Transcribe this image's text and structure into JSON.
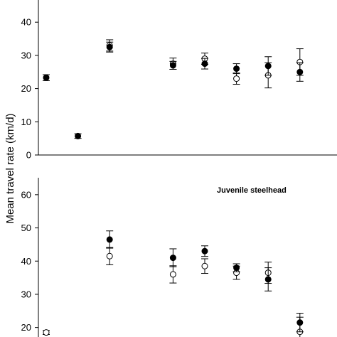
{
  "chart_data": [
    {
      "type": "scatter",
      "ylim": [
        0,
        45
      ],
      "yticks": [
        0,
        10,
        20,
        30,
        40
      ],
      "annotation": "",
      "series": [
        {
          "marker": "filled",
          "color": "#000000",
          "points": [
            {
              "x": 1,
              "y": 23.3,
              "err": 0.9
            },
            {
              "x": 2,
              "y": 5.7,
              "err": 0.7
            },
            {
              "x": 3,
              "y": 32.5,
              "err": 1.5
            },
            {
              "x": 5,
              "y": 27.0,
              "err": 1.2
            },
            {
              "x": 6,
              "y": 27.5,
              "err": 1.6
            },
            {
              "x": 7,
              "y": 26.0,
              "err": 1.5
            },
            {
              "x": 8,
              "y": 26.8,
              "err": 2.8
            },
            {
              "x": 9,
              "y": 25.0,
              "err": 2.8
            }
          ]
        },
        {
          "marker": "open",
          "color": "#000000",
          "points": [
            {
              "x": 3,
              "y": 33.0,
              "err": 1.7
            },
            {
              "x": 5,
              "y": 27.5,
              "err": 1.7
            },
            {
              "x": 6,
              "y": 29.0,
              "err": 1.7
            },
            {
              "x": 7,
              "y": 23.0,
              "err": 1.7
            },
            {
              "x": 8,
              "y": 24.0,
              "err": 3.8
            },
            {
              "x": 9,
              "y": 28.0,
              "err": 4.0
            }
          ]
        }
      ]
    },
    {
      "type": "scatter",
      "ylim": [
        15,
        60
      ],
      "yticks": [
        20,
        30,
        40,
        50,
        60
      ],
      "annotation": "Juvenile steelhead",
      "series": [
        {
          "marker": "filled",
          "color": "#000000",
          "points": [
            {
              "x": 3,
              "y": 46.5,
              "err": 2.6
            },
            {
              "x": 5,
              "y": 41.0,
              "err": 2.7
            },
            {
              "x": 6,
              "y": 43.0,
              "err": 1.6
            },
            {
              "x": 7,
              "y": 38.0,
              "err": 1.2
            },
            {
              "x": 8,
              "y": 34.5,
              "err": 3.5
            },
            {
              "x": 9,
              "y": 21.5,
              "err": 2.8
            }
          ]
        },
        {
          "marker": "open",
          "color": "#000000",
          "points": [
            {
              "x": 1,
              "y": 18.5,
              "err": 0.6
            },
            {
              "x": 3,
              "y": 41.5,
              "err": 2.6
            },
            {
              "x": 5,
              "y": 36.0,
              "err": 2.6
            },
            {
              "x": 6,
              "y": 38.5,
              "err": 2.2
            },
            {
              "x": 7,
              "y": 36.5,
              "err": 2.0
            },
            {
              "x": 8,
              "y": 36.5,
              "err": 3.2
            },
            {
              "x": 9,
              "y": 18.7,
              "err": 4.4
            }
          ]
        }
      ]
    }
  ],
  "ylabel": "Mean travel rate (km/d)"
}
